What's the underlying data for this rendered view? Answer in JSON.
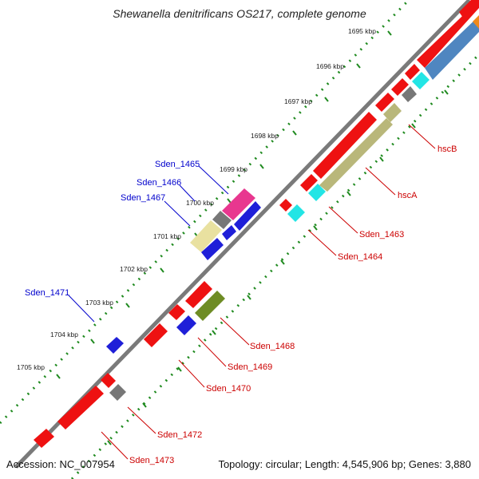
{
  "title": "Shewanella denitrificans OS217, complete genome",
  "footer": {
    "accession": "Accession: NC_007954",
    "summary": "Topology: circular; Length: 4,545,906 bp; Genes: 3,880"
  },
  "colors": {
    "backbone": "#7f7f7f",
    "tick_dots": "#1f8a1f",
    "label_blue": "#0000cc",
    "label_red": "#cc0000"
  },
  "ticks": [
    "1695 kbp",
    "1696 kbp",
    "1697 kbp",
    "1698 kbp",
    "1699 kbp",
    "1700 kbp",
    "1701 kbp",
    "1702 kbp",
    "1703 kbp",
    "1704 kbp",
    "1705 kbp"
  ],
  "genes": [
    {
      "name": "hscB",
      "strand": "reverse",
      "color": "red"
    },
    {
      "name": "hscA",
      "strand": "reverse",
      "color": "red"
    },
    {
      "name": "Sden_1463",
      "strand": "reverse",
      "color": "red"
    },
    {
      "name": "Sden_1464",
      "strand": "reverse",
      "color": "red"
    },
    {
      "name": "Sden_1465",
      "strand": "forward",
      "color": "blue"
    },
    {
      "name": "Sden_1466",
      "strand": "forward",
      "color": "blue"
    },
    {
      "name": "Sden_1467",
      "strand": "forward",
      "color": "blue"
    },
    {
      "name": "Sden_1468",
      "strand": "reverse",
      "color": "red"
    },
    {
      "name": "Sden_1469",
      "strand": "reverse",
      "color": "red"
    },
    {
      "name": "Sden_1470",
      "strand": "reverse",
      "color": "red"
    },
    {
      "name": "Sden_1471",
      "strand": "forward",
      "color": "blue"
    },
    {
      "name": "Sden_1472",
      "strand": "reverse",
      "color": "red"
    },
    {
      "name": "Sden_1473",
      "strand": "reverse",
      "color": "red"
    }
  ]
}
